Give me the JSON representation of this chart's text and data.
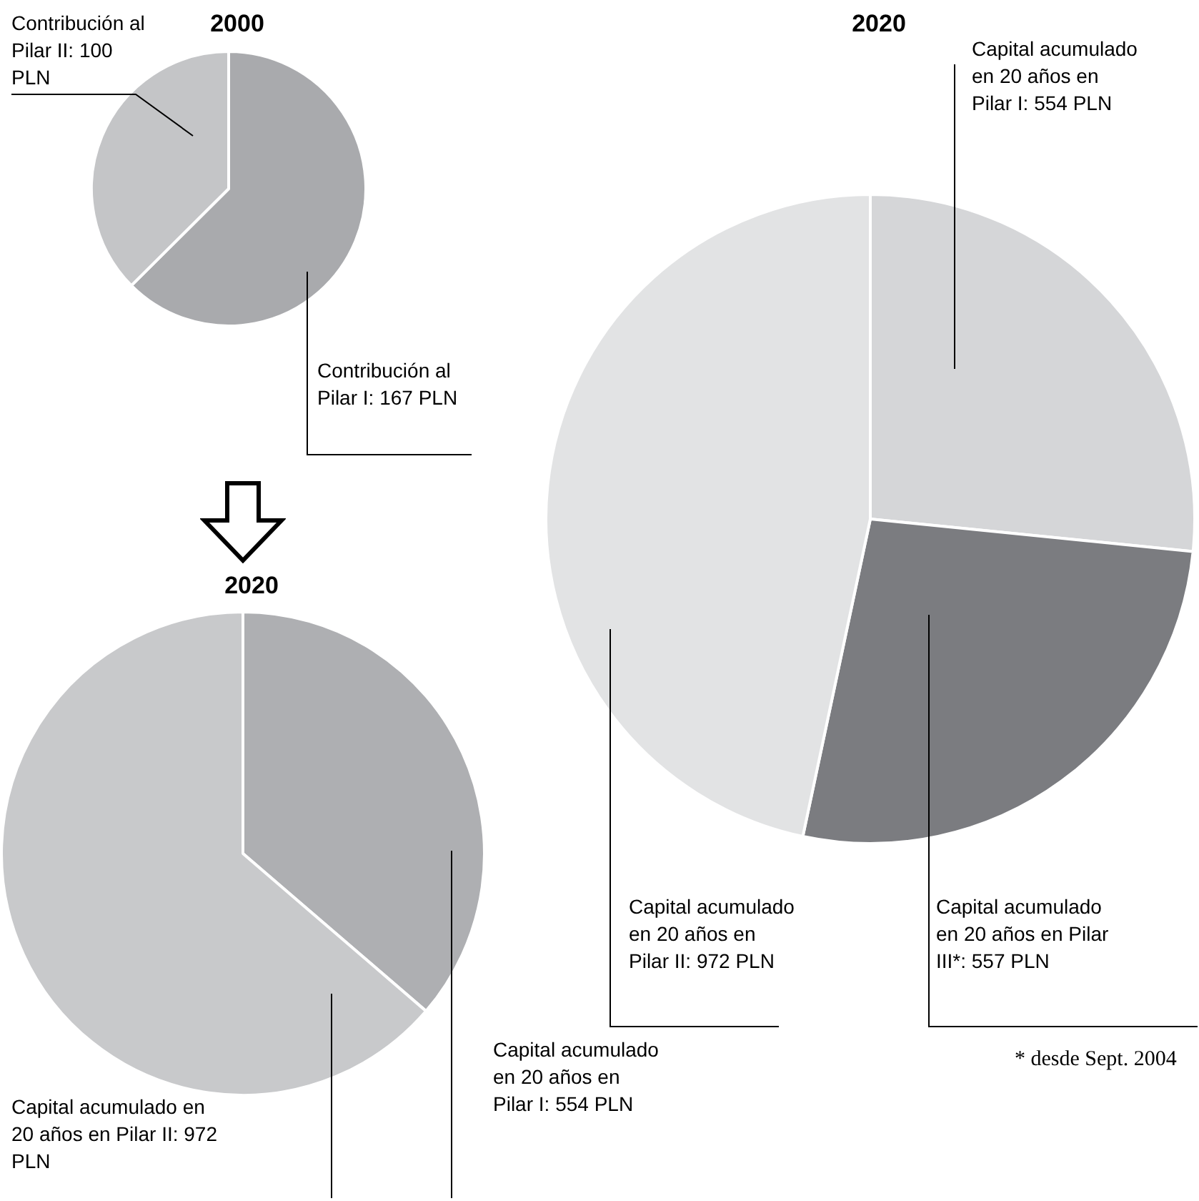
{
  "chart_data": [
    {
      "type": "pie",
      "title": "2000",
      "categories": [
        null,
        null
      ],
      "values": [
        167,
        100
      ],
      "colors": [
        "#a9aaad",
        "#c4c5c7"
      ],
      "value_labels": [
        "Contribución al Pilar I: 167 PLN",
        "Contribución al Pilar II: 100 PLN"
      ]
    },
    {
      "type": "pie",
      "title": "2020",
      "categories": [
        null,
        null
      ],
      "values": [
        554,
        972
      ],
      "colors": [
        "#aeafb2",
        "#c8c9cb"
      ],
      "value_labels": [
        "Capital acumulado en 20 años en Pilar I: 554 PLN",
        "Capital acumulado en 20 años en Pilar II: 972 PLN"
      ]
    },
    {
      "type": "pie",
      "title": "2020",
      "categories": [
        null,
        null,
        null
      ],
      "values": [
        554,
        557,
        972
      ],
      "colors": [
        "#d5d6d8",
        "#7b7c80",
        "#e2e3e4"
      ],
      "value_labels": [
        "Capital acumulado en 20 años en Pilar I: 554 PLN",
        "Capital acumulado en 20 años en Pilar III*: 557 PLN",
        "Capital acumulado en 20 años en Pilar II: 972 PLN"
      ],
      "annotations": [
        "* desde Sept. 2004"
      ]
    }
  ]
}
